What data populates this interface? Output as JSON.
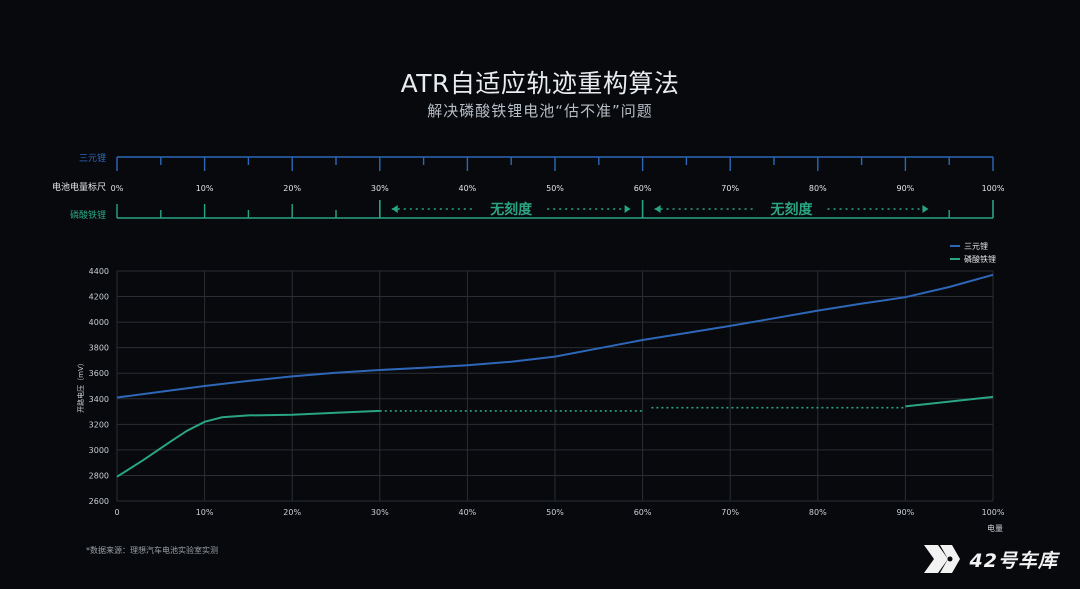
{
  "header": {
    "title": "ATR自适应轨迹重构算法",
    "subtitle": "解决磷酸铁锂电池“估不准”问题"
  },
  "ruler": {
    "ncm_label": "三元锂",
    "scale_label": "电池电量标尺",
    "lfp_label": "磷酸铁锂",
    "ticks": [
      "0%",
      "10%",
      "20%",
      "30%",
      "40%",
      "50%",
      "60%",
      "70%",
      "80%",
      "90%",
      "100%"
    ],
    "no_scale_label": "无刻度",
    "no_scale_ranges": [
      [
        30,
        60
      ],
      [
        60,
        94
      ]
    ]
  },
  "footnote": "*数据来源：理想汽车电池实验室实测",
  "watermark": {
    "text": "42号车库",
    "logo": "42-garage-logo"
  },
  "colors": {
    "ncm": "#2e67b8",
    "lfp": "#2aa584",
    "grid": "#2a2e34",
    "axis_text": "#c9ced4"
  },
  "chart_data": {
    "type": "line",
    "title": "",
    "xlabel": "电量",
    "ylabel": "开路电压（mV）",
    "xlim": [
      0,
      100
    ],
    "ylim": [
      2600,
      4400
    ],
    "x_tick_labels": [
      "0",
      "10%",
      "20%",
      "30%",
      "40%",
      "50%",
      "60%",
      "70%",
      "80%",
      "90%",
      "100%"
    ],
    "y_ticks": [
      2600,
      2800,
      3000,
      3200,
      3400,
      3600,
      3800,
      4000,
      4200,
      4400
    ],
    "grid": true,
    "legend_position": "top-right",
    "series": [
      {
        "name": "三元锂",
        "color": "#2e67b8",
        "points": [
          [
            0,
            3410
          ],
          [
            5,
            3455
          ],
          [
            10,
            3500
          ],
          [
            15,
            3540
          ],
          [
            20,
            3575
          ],
          [
            25,
            3603
          ],
          [
            30,
            3625
          ],
          [
            35,
            3643
          ],
          [
            40,
            3663
          ],
          [
            45,
            3690
          ],
          [
            50,
            3730
          ],
          [
            55,
            3795
          ],
          [
            60,
            3860
          ],
          [
            65,
            3915
          ],
          [
            70,
            3970
          ],
          [
            75,
            4030
          ],
          [
            80,
            4090
          ],
          [
            85,
            4145
          ],
          [
            90,
            4195
          ],
          [
            95,
            4275
          ],
          [
            100,
            4370
          ]
        ]
      },
      {
        "name": "磷酸铁锂",
        "color": "#2aa584",
        "points": [
          [
            0,
            2790
          ],
          [
            3,
            2920
          ],
          [
            6,
            3060
          ],
          [
            8,
            3150
          ],
          [
            10,
            3220
          ],
          [
            12,
            3255
          ],
          [
            15,
            3270
          ],
          [
            20,
            3275
          ],
          [
            25,
            3290
          ],
          [
            30,
            3305
          ]
        ],
        "dotted": [
          [
            [
              30,
              3305
            ],
            [
              60,
              3305
            ]
          ],
          [
            [
              61,
              3330
            ],
            [
              90,
              3330
            ]
          ]
        ],
        "tail": [
          [
            90,
            3340
          ],
          [
            100,
            3415
          ]
        ]
      }
    ]
  }
}
